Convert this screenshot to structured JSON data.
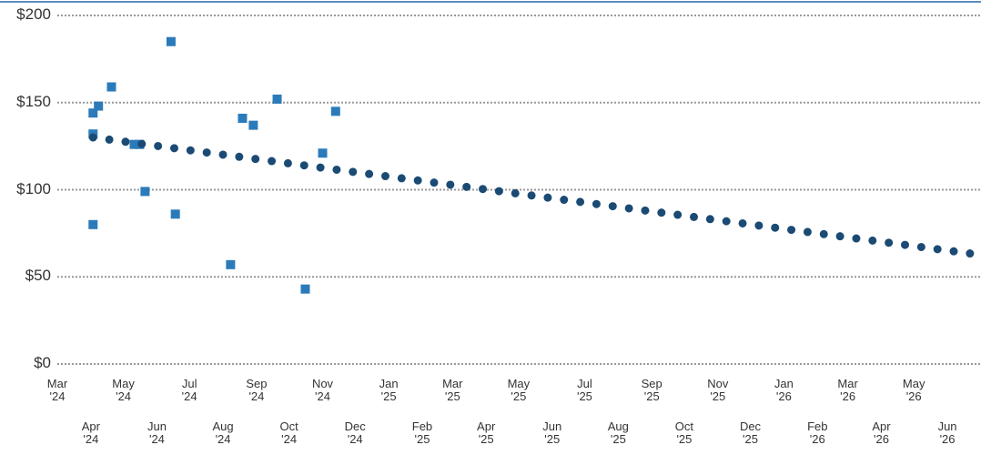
{
  "chart_data": {
    "type": "scatter",
    "xlim": [
      "2024-03-01",
      "2026-06-27"
    ],
    "ylim": [
      0,
      200
    ],
    "yticks": [
      {
        "value": 0,
        "label": "$0"
      },
      {
        "value": 50,
        "label": "$50"
      },
      {
        "value": 100,
        "label": "$100"
      },
      {
        "value": 150,
        "label": "$150"
      },
      {
        "value": 200,
        "label": "$200"
      }
    ],
    "xticks": [
      {
        "value": "2024-03-01",
        "label": "Mar\n'24"
      },
      {
        "value": "2024-04-01",
        "label": "Apr\n'24"
      },
      {
        "value": "2024-05-01",
        "label": "May\n'24"
      },
      {
        "value": "2024-06-01",
        "label": "Jun\n'24"
      },
      {
        "value": "2024-07-01",
        "label": "Jul\n'24"
      },
      {
        "value": "2024-08-01",
        "label": "Aug\n'24"
      },
      {
        "value": "2024-09-01",
        "label": "Sep\n'24"
      },
      {
        "value": "2024-10-01",
        "label": "Oct\n'24"
      },
      {
        "value": "2024-11-01",
        "label": "Nov\n'24"
      },
      {
        "value": "2024-12-01",
        "label": "Dec\n'24"
      },
      {
        "value": "2025-01-01",
        "label": "Jan\n'25"
      },
      {
        "value": "2025-02-01",
        "label": "Feb\n'25"
      },
      {
        "value": "2025-03-01",
        "label": "Mar\n'25"
      },
      {
        "value": "2025-04-01",
        "label": "Apr\n'25"
      },
      {
        "value": "2025-05-01",
        "label": "May\n'25"
      },
      {
        "value": "2025-06-01",
        "label": "Jun\n'25"
      },
      {
        "value": "2025-07-01",
        "label": "Jul\n'25"
      },
      {
        "value": "2025-08-01",
        "label": "Aug\n'25"
      },
      {
        "value": "2025-09-01",
        "label": "Sep\n'25"
      },
      {
        "value": "2025-10-01",
        "label": "Oct\n'25"
      },
      {
        "value": "2025-11-01",
        "label": "Nov\n'25"
      },
      {
        "value": "2025-12-01",
        "label": "Dec\n'25"
      },
      {
        "value": "2026-01-01",
        "label": "Jan\n'26"
      },
      {
        "value": "2026-02-01",
        "label": "Feb\n'26"
      },
      {
        "value": "2026-03-01",
        "label": "Mar\n'26"
      },
      {
        "value": "2026-04-01",
        "label": "Apr\n'26"
      },
      {
        "value": "2026-05-01",
        "label": "May\n'26"
      },
      {
        "value": "2026-06-01",
        "label": "Jun\n'26"
      }
    ],
    "grid": true,
    "series": [
      {
        "type": "scatter",
        "color": "#2b7bba",
        "x": [
          "2024-04-03",
          "2024-04-03",
          "2024-04-03",
          "2024-04-08",
          "2024-04-20",
          "2024-05-11",
          "2024-05-16",
          "2024-05-21",
          "2024-06-14",
          "2024-06-18",
          "2024-08-08",
          "2024-08-19",
          "2024-08-29",
          "2024-09-20",
          "2024-10-16",
          "2024-11-01",
          "2024-11-13"
        ],
        "values": [
          80,
          132,
          144,
          148,
          159,
          126,
          126,
          99,
          185,
          86,
          57,
          141,
          137,
          152,
          43,
          121,
          145
        ]
      },
      {
        "type": "line",
        "color": "#1b4a74",
        "x": [
          "2024-04-03",
          "2026-06-27"
        ],
        "values": [
          130,
          63
        ]
      }
    ]
  }
}
